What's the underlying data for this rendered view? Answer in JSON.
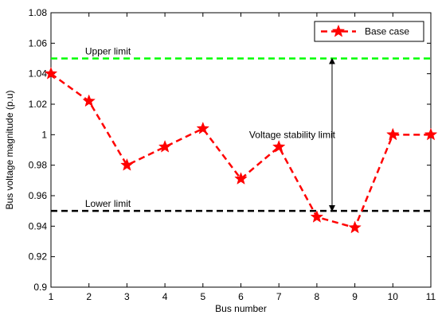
{
  "chart_data": {
    "type": "line",
    "title": "",
    "xlabel": "Bus number",
    "ylabel": "Bus voltage magnitude (p.u)",
    "xlim": [
      1,
      11
    ],
    "ylim": [
      0.9,
      1.08
    ],
    "grid": false,
    "legend_position": "top-right",
    "x_ticks": [
      1,
      2,
      3,
      4,
      5,
      6,
      7,
      8,
      9,
      10,
      11
    ],
    "x_tick_labels": [
      "1",
      "2",
      "3",
      "4",
      "5",
      "6",
      "7",
      "8",
      "9",
      "10",
      "11"
    ],
    "y_ticks": [
      0.9,
      0.92,
      0.94,
      0.96,
      0.98,
      1.0,
      1.02,
      1.04,
      1.06,
      1.08
    ],
    "y_tick_labels": [
      "0.9",
      "0.92",
      "0.94",
      "0.96",
      "0.98",
      "1",
      "1.02",
      "1.04",
      "1.06",
      "1.08"
    ],
    "series": [
      {
        "name": "Base case",
        "color": "#ff0000",
        "line_style": "dashed",
        "marker": "star",
        "x": [
          1,
          2,
          3,
          4,
          5,
          6,
          7,
          8,
          9,
          10,
          11
        ],
        "y": [
          1.04,
          1.022,
          0.98,
          0.992,
          1.004,
          0.971,
          0.992,
          0.946,
          0.939,
          1.0,
          1.0
        ]
      }
    ],
    "reference_lines": [
      {
        "label": "Upper limit",
        "y": 1.05,
        "color": "#00ff00",
        "line_style": "dashed"
      },
      {
        "label": "Lower limit",
        "y": 0.95,
        "color": "#000000",
        "line_style": "dashed"
      }
    ],
    "annotations": [
      {
        "text": "Voltage stability limit",
        "x": 8.4,
        "y_from": 0.95,
        "y_to": 1.05,
        "arrow": "double"
      }
    ]
  }
}
